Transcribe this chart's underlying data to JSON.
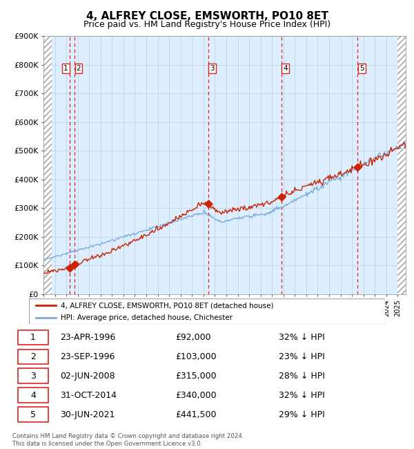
{
  "title": "4, ALFREY CLOSE, EMSWORTH, PO10 8ET",
  "subtitle": "Price paid vs. HM Land Registry's House Price Index (HPI)",
  "ylim": [
    0,
    900000
  ],
  "yticks": [
    0,
    100000,
    200000,
    300000,
    400000,
    500000,
    600000,
    700000,
    800000,
    900000
  ],
  "ytick_labels": [
    "£0",
    "£100K",
    "£200K",
    "£300K",
    "£400K",
    "£500K",
    "£600K",
    "£700K",
    "£800K",
    "£900K"
  ],
  "xlim_start": 1994.0,
  "xlim_end": 2025.7,
  "transactions": [
    {
      "id": 1,
      "date_year": 1996.31,
      "price": 92000
    },
    {
      "id": 2,
      "date_year": 1996.73,
      "price": 103000
    },
    {
      "id": 3,
      "date_year": 2008.42,
      "price": 315000
    },
    {
      "id": 4,
      "date_year": 2014.83,
      "price": 340000
    },
    {
      "id": 5,
      "date_year": 2021.5,
      "price": 441500
    }
  ],
  "transaction_table": [
    {
      "id": 1,
      "date": "23-APR-1996",
      "price": "£92,000",
      "note": "32% ↓ HPI"
    },
    {
      "id": 2,
      "date": "23-SEP-1996",
      "price": "£103,000",
      "note": "23% ↓ HPI"
    },
    {
      "id": 3,
      "date": "02-JUN-2008",
      "price": "£315,000",
      "note": "28% ↓ HPI"
    },
    {
      "id": 4,
      "date": "31-OCT-2014",
      "price": "£340,000",
      "note": "32% ↓ HPI"
    },
    {
      "id": 5,
      "date": "30-JUN-2021",
      "price": "£441,500",
      "note": "29% ↓ HPI"
    }
  ],
  "legend_line1": "4, ALFREY CLOSE, EMSWORTH, PO10 8ET (detached house)",
  "legend_line2": "HPI: Average price, detached house, Chichester",
  "footer": "Contains HM Land Registry data © Crown copyright and database right 2024.\nThis data is licensed under the Open Government Licence v3.0.",
  "hpi_color": "#7aaadd",
  "price_color": "#cc2200",
  "chart_bg_light": "#ddeeff",
  "chart_bg_white": "#ffffff",
  "grid_color": "#bbccdd",
  "dashed_line_color": "#dd2222",
  "title_fontsize": 11,
  "subtitle_fontsize": 9
}
